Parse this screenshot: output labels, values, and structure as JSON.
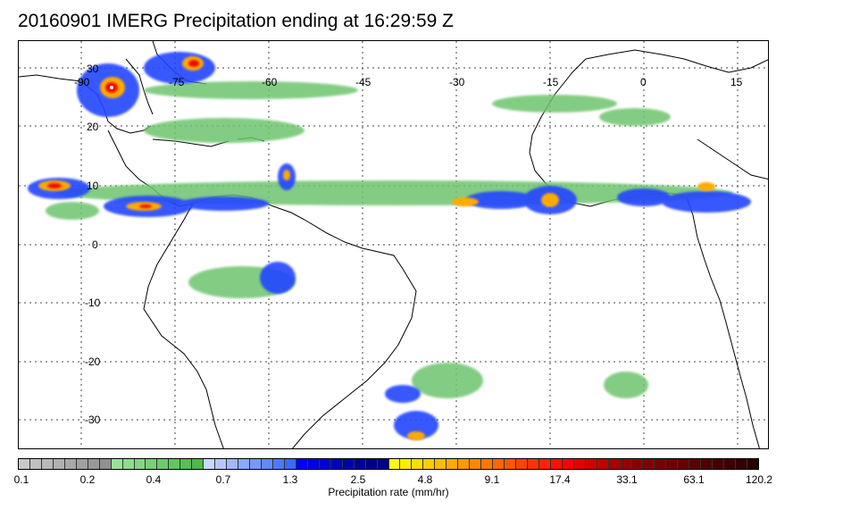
{
  "title": "20160901 IMERG Precipitation ending at 16:29:59 Z",
  "map": {
    "longitude_labels": [
      "-90",
      "-75",
      "-60",
      "-45",
      "-30",
      "-15",
      "0",
      "15"
    ],
    "latitude_labels": [
      "30",
      "20",
      "10",
      "0",
      "-10",
      "-20",
      "-30"
    ],
    "gridlines": "dotted",
    "coastline_color": "#000000"
  },
  "colorbar": {
    "title": "Precipitation rate (mm/hr)",
    "tick_labels": [
      "0.1",
      "0.2",
      "0.4",
      "0.7",
      "1.3",
      "2.5",
      "4.8",
      "9.1",
      "17.4",
      "33.1",
      "63.1",
      "120.2"
    ],
    "colors": [
      "#c8c8c8",
      "#c0c0c0",
      "#b8b8b8",
      "#b0b0b0",
      "#a8a8a8",
      "#a0a0a0",
      "#989898",
      "#909090",
      "#9ae29a",
      "#8fdc8f",
      "#84d684",
      "#79d079",
      "#6eca6e",
      "#63c463",
      "#58be58",
      "#4db84d",
      "#c8d8ff",
      "#b4c8ff",
      "#a0b8ff",
      "#8ca8ff",
      "#7898ff",
      "#6488ff",
      "#5078ff",
      "#3c68ff",
      "#0000ff",
      "#0000e6",
      "#0000d2",
      "#0000be",
      "#0000aa",
      "#000096",
      "#00008c",
      "#000082",
      "#ffff00",
      "#ffee00",
      "#ffdd00",
      "#ffcc00",
      "#ffbb00",
      "#ffaa00",
      "#ff9900",
      "#ff8800",
      "#ff7700",
      "#ff6600",
      "#ff5500",
      "#ff4400",
      "#ff3300",
      "#ff2200",
      "#ff1100",
      "#ff0000",
      "#e60000",
      "#d20000",
      "#be0000",
      "#aa0000",
      "#960000",
      "#8c0000",
      "#820000",
      "#780000",
      "#6e0000",
      "#640000",
      "#5a0000",
      "#500000",
      "#460000",
      "#3c0000",
      "#320000",
      "#280000"
    ]
  },
  "features": [
    "hurricane-hermine-gulf-of-mexico",
    "itcz-rainband-atlantic",
    "west-africa-convection",
    "south-america-convection",
    "south-atlantic-frontal-band"
  ]
}
